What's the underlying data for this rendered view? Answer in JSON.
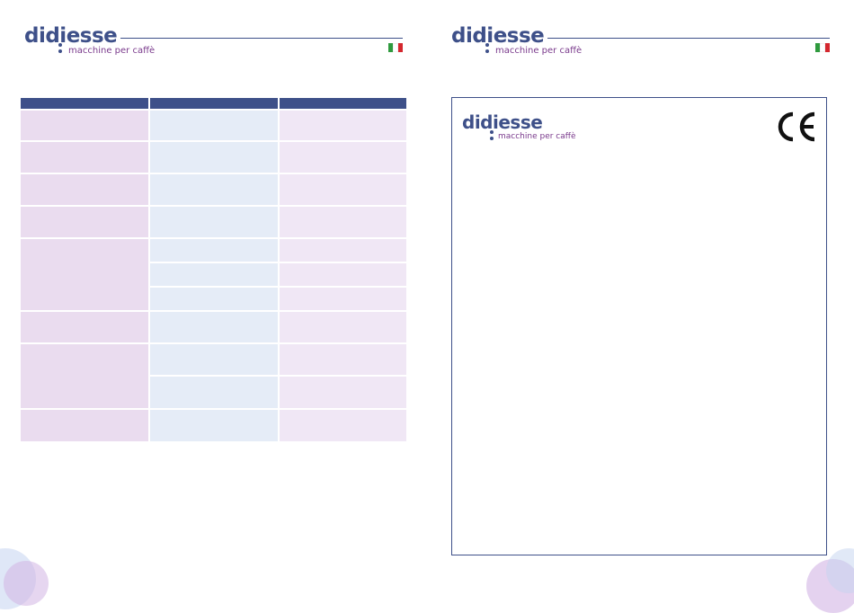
{
  "brand": {
    "name": "didiesse",
    "tagline": "macchine per caffè",
    "color": "#3e5089",
    "tagline_color": "#7a3a8c"
  },
  "language_flag": "italian-flag",
  "colors": {
    "header": "#3e5089",
    "cell_lavender": "#eadcef",
    "cell_blue": "#e5ecf7",
    "cell_pink": "#f0e7f5"
  },
  "certificate_mark": "CE"
}
